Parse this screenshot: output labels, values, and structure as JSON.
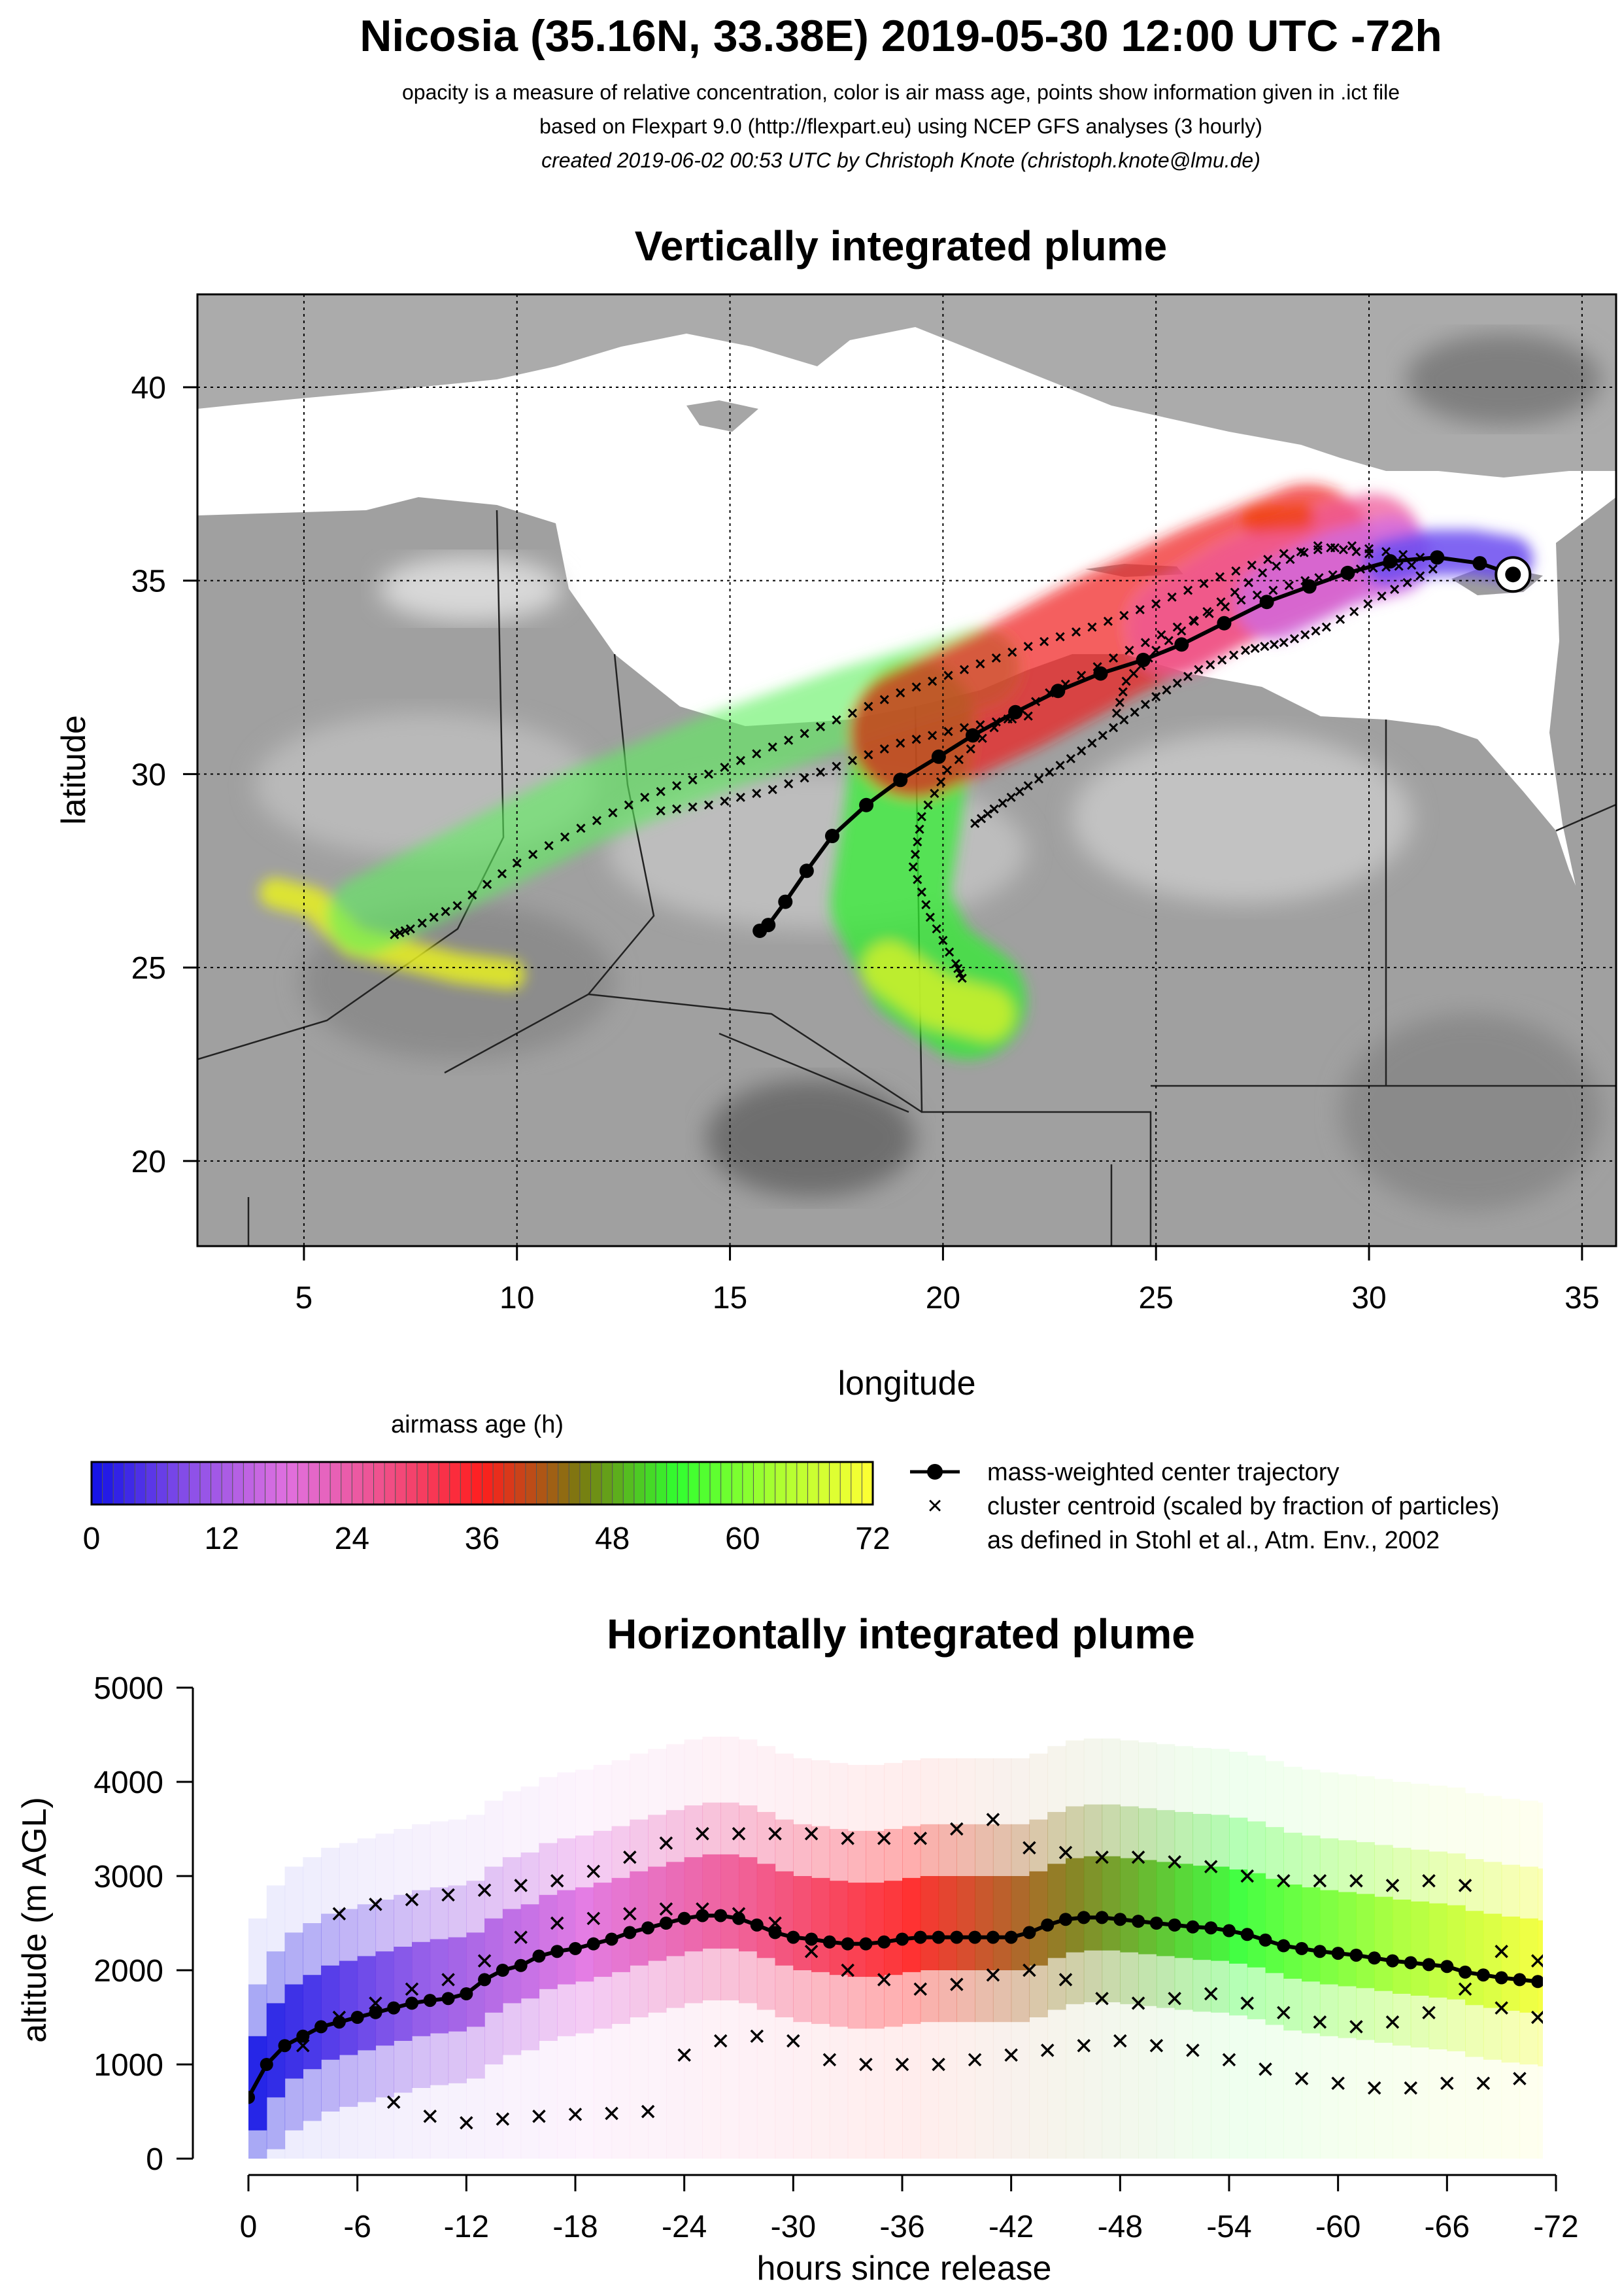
{
  "header": {
    "title": "Nicosia (35.16N, 33.38E) 2019-05-30 12:00 UTC -72h",
    "line1": "opacity is a measure of relative concentration, color is air mass age, points show information given in .ict file",
    "line2": "based on Flexpart 9.0 (http://flexpart.eu) using NCEP GFS analyses (3 hourly)",
    "line3": "created 2019-06-02 00:53 UTC by Christoph Knote (christoph.knote@lmu.de)"
  },
  "colors": {
    "age_ramp": [
      "#1010e6",
      "#8a4fe8",
      "#e070e0",
      "#f0508a",
      "#ff1e1e",
      "#7a7a10",
      "#30ff30",
      "#aaff30",
      "#ffff33"
    ],
    "land": "#9a9a9a",
    "sea": "#ffffff",
    "trajectory": "#000000"
  },
  "map": {
    "title": "Vertically integrated plume",
    "xlabel": "longitude",
    "ylabel": "latitude",
    "xlim": [
      2.5,
      35.8
    ],
    "ylim": [
      17.8,
      42.4
    ],
    "xticks": [
      5,
      10,
      15,
      20,
      25,
      30,
      35
    ],
    "yticks": [
      20,
      25,
      30,
      35,
      40
    ],
    "release": {
      "lon": 33.38,
      "lat": 35.16
    },
    "center_trajectory": [
      [
        33.38,
        35.16
      ],
      [
        32.6,
        35.45
      ],
      [
        31.6,
        35.6
      ],
      [
        30.5,
        35.5
      ],
      [
        29.5,
        35.2
      ],
      [
        28.6,
        34.85
      ],
      [
        27.6,
        34.45
      ],
      [
        26.6,
        33.9
      ],
      [
        25.6,
        33.35
      ],
      [
        24.7,
        32.95
      ],
      [
        23.7,
        32.6
      ],
      [
        22.7,
        32.15
      ],
      [
        21.7,
        31.6
      ],
      [
        20.7,
        31.0
      ],
      [
        19.9,
        30.45
      ],
      [
        19.0,
        29.85
      ],
      [
        18.2,
        29.2
      ],
      [
        17.4,
        28.4
      ],
      [
        16.8,
        27.5
      ],
      [
        16.3,
        26.7
      ],
      [
        15.9,
        26.1
      ],
      [
        15.7,
        25.95
      ]
    ],
    "cluster_tracks": [
      [
        [
          31.2,
          35.6
        ],
        [
          29.6,
          35.9
        ],
        [
          28.0,
          35.7
        ],
        [
          26.5,
          35.1
        ],
        [
          25.0,
          34.4
        ],
        [
          23.5,
          33.8
        ],
        [
          22.0,
          33.3
        ],
        [
          20.5,
          32.7
        ],
        [
          19.0,
          32.1
        ],
        [
          17.5,
          31.4
        ],
        [
          16.0,
          30.7
        ],
        [
          14.5,
          30.0
        ],
        [
          13.0,
          29.4
        ],
        [
          11.5,
          28.6
        ],
        [
          10.0,
          27.7
        ],
        [
          8.6,
          26.6
        ],
        [
          7.5,
          26.0
        ],
        [
          7.0,
          25.8
        ]
      ],
      [
        [
          31.0,
          35.4
        ],
        [
          29.8,
          35.3
        ],
        [
          28.5,
          35.0
        ],
        [
          27.0,
          34.5
        ],
        [
          25.5,
          33.8
        ],
        [
          24.0,
          33.0
        ],
        [
          22.5,
          32.1
        ],
        [
          21.2,
          31.2
        ],
        [
          20.1,
          30.1
        ],
        [
          19.5,
          28.9
        ],
        [
          19.3,
          27.6
        ],
        [
          19.7,
          26.3
        ],
        [
          20.3,
          25.1
        ],
        [
          20.5,
          24.6
        ]
      ],
      [
        [
          31.5,
          35.3
        ],
        [
          30.3,
          34.6
        ],
        [
          29.0,
          33.8
        ],
        [
          28.0,
          33.4
        ],
        [
          27.1,
          33.2
        ],
        [
          26.0,
          32.7
        ],
        [
          25.0,
          32.0
        ],
        [
          24.0,
          31.2
        ],
        [
          23.0,
          30.4
        ],
        [
          22.0,
          29.7
        ],
        [
          21.2,
          29.1
        ],
        [
          20.6,
          28.6
        ]
      ],
      [
        [
          30.0,
          35.7
        ],
        [
          28.8,
          35.9
        ],
        [
          27.5,
          35.2
        ],
        [
          26.2,
          34.2
        ],
        [
          25.0,
          33.2
        ],
        [
          24.3,
          32.4
        ],
        [
          24.0,
          31.3
        ]
      ],
      [
        [
          22.0,
          31.5
        ],
        [
          20.5,
          31.2
        ],
        [
          19.0,
          30.8
        ],
        [
          17.5,
          30.2
        ],
        [
          16.0,
          29.6
        ],
        [
          14.5,
          29.2
        ],
        [
          13.0,
          29.0
        ]
      ]
    ]
  },
  "colorbar": {
    "title": "airmass age (h)",
    "ticks": [
      "0",
      "12",
      "24",
      "36",
      "48",
      "60",
      "72"
    ]
  },
  "legend": {
    "line_label": "mass-weighted center trajectory",
    "cross_label_1": "cluster centroid (scaled by fraction of particles)",
    "cross_label_2": "as defined in Stohl et al., Atm. Env., 2002"
  },
  "chart_data": {
    "type": "scatter",
    "title": "Horizontally integrated plume",
    "xlabel": "hours since release",
    "ylabel": "altitude (m AGL)",
    "xlim": [
      0,
      -72
    ],
    "ylim": [
      0,
      5000
    ],
    "x_tick_labels": [
      "0",
      "-6",
      "-12",
      "-18",
      "-24",
      "-30",
      "-36",
      "-42",
      "-48",
      "-54",
      "-60",
      "-66",
      "-72"
    ],
    "y_tick_labels": [
      "0",
      "1000",
      "2000",
      "3000",
      "4000",
      "5000"
    ],
    "series": [
      {
        "name": "mass-weighted center trajectory",
        "x": [
          0,
          -1,
          -2,
          -3,
          -4,
          -5,
          -6,
          -7,
          -8,
          -9,
          -10,
          -11,
          -12,
          -13,
          -14,
          -15,
          -16,
          -17,
          -18,
          -19,
          -20,
          -21,
          -22,
          -23,
          -24,
          -25,
          -26,
          -27,
          -28,
          -29,
          -30,
          -31,
          -32,
          -33,
          -34,
          -35,
          -36,
          -37,
          -38,
          -39,
          -40,
          -41,
          -42,
          -43,
          -44,
          -45,
          -46,
          -47,
          -48,
          -49,
          -50,
          -51,
          -52,
          -53,
          -54,
          -55,
          -56,
          -57,
          -58,
          -59,
          -60,
          -61,
          -62,
          -63,
          -64,
          -65,
          -66,
          -67,
          -68,
          -69,
          -70,
          -71
        ],
        "y": [
          650,
          1000,
          1200,
          1300,
          1400,
          1450,
          1500,
          1550,
          1600,
          1650,
          1680,
          1700,
          1750,
          1900,
          2000,
          2050,
          2150,
          2200,
          2230,
          2280,
          2330,
          2400,
          2450,
          2500,
          2550,
          2580,
          2580,
          2550,
          2480,
          2400,
          2350,
          2330,
          2300,
          2280,
          2280,
          2300,
          2330,
          2350,
          2350,
          2350,
          2350,
          2350,
          2350,
          2400,
          2480,
          2540,
          2560,
          2560,
          2540,
          2520,
          2500,
          2480,
          2460,
          2450,
          2420,
          2380,
          2320,
          2260,
          2230,
          2200,
          2180,
          2160,
          2130,
          2100,
          2080,
          2060,
          2040,
          1980,
          1950,
          1920,
          1900,
          1880
        ]
      },
      {
        "name": "cluster centroid (scaled by fraction of particles)",
        "tracks": [
          {
            "x": [
              -5,
              -7,
              -9,
              -11,
              -13,
              -15,
              -17,
              -19,
              -21,
              -23,
              -25,
              -27,
              -29,
              -31,
              -33,
              -35,
              -37,
              -39,
              -41,
              -43,
              -45,
              -47,
              -49,
              -51,
              -53,
              -55,
              -57,
              -59,
              -61,
              -63,
              -65,
              -67,
              -69,
              -71
            ],
            "y": [
              2600,
              2700,
              2750,
              2800,
              2850,
              2900,
              2950,
              3050,
              3200,
              3350,
              3450,
              3450,
              3450,
              3450,
              3400,
              3400,
              3400,
              3500,
              3600,
              3300,
              3250,
              3200,
              3200,
              3150,
              3100,
              3000,
              2950,
              2950,
              2950,
              2900,
              2950,
              2900,
              2200,
              2100
            ]
          },
          {
            "x": [
              -3,
              -5,
              -7,
              -9,
              -11,
              -13,
              -15,
              -17,
              -19,
              -21,
              -23,
              -25,
              -27,
              -29,
              -31,
              -33,
              -35,
              -37,
              -39,
              -41,
              -43,
              -45,
              -47,
              -49,
              -51,
              -53,
              -55,
              -57,
              -59,
              -61,
              -63,
              -65,
              -67,
              -69,
              -71
            ],
            "y": [
              1200,
              1500,
              1650,
              1800,
              1900,
              2100,
              2350,
              2500,
              2550,
              2600,
              2650,
              2650,
              2600,
              2500,
              2200,
              2000,
              1900,
              1800,
              1850,
              1950,
              2000,
              1900,
              1700,
              1650,
              1700,
              1750,
              1650,
              1550,
              1450,
              1400,
              1450,
              1550,
              1800,
              1600,
              1500
            ]
          },
          {
            "x": [
              -8,
              -10,
              -12,
              -14,
              -16,
              -18,
              -20,
              -22,
              -24,
              -26,
              -28,
              -30,
              -32,
              -34,
              -36,
              -38,
              -40,
              -42,
              -44,
              -46,
              -48,
              -50,
              -52,
              -54,
              -56,
              -58,
              -60,
              -62,
              -64,
              -66,
              -68,
              -70,
              -72
            ],
            "y": [
              600,
              450,
              380,
              420,
              450,
              470,
              480,
              500,
              1100,
              1250,
              1300,
              1250,
              1050,
              1000,
              1000,
              1000,
              1050,
              1100,
              1150,
              1200,
              1250,
              1200,
              1150,
              1050,
              950,
              850,
              800,
              750,
              750,
              800,
              800,
              850,
              800
            ]
          }
        ]
      }
    ]
  }
}
